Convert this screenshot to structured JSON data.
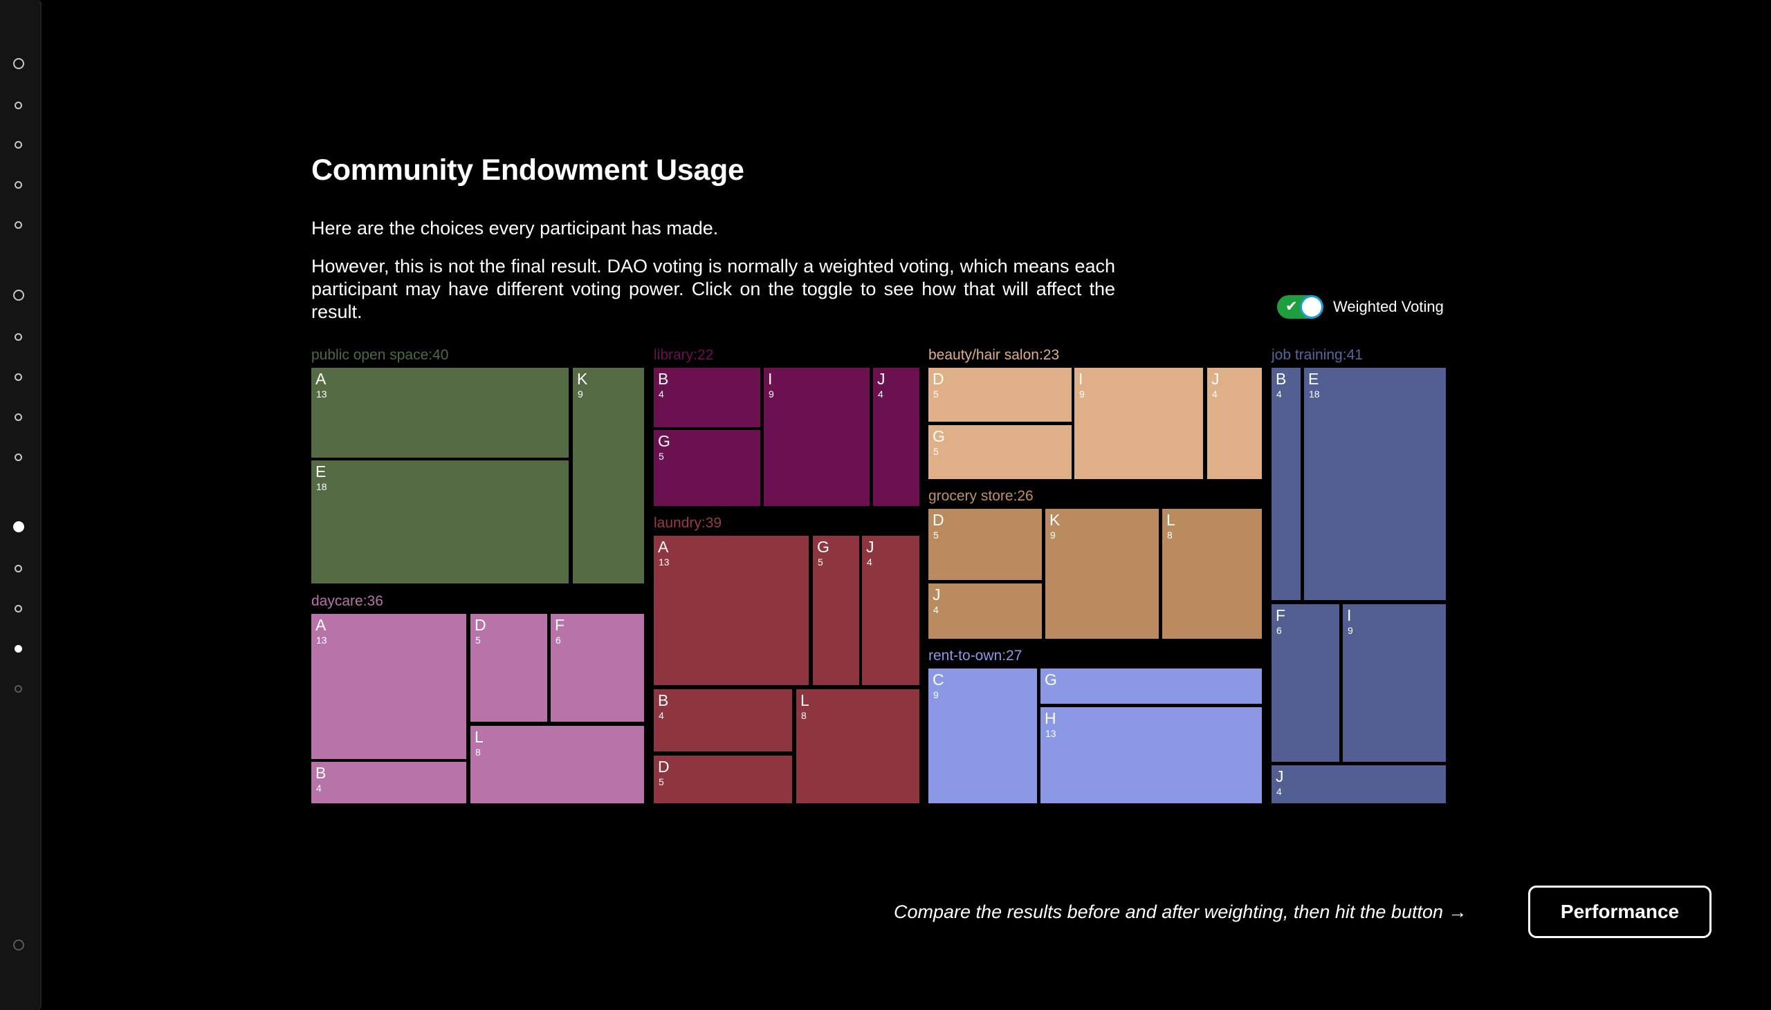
{
  "page": {
    "title": "Community Endowment Usage",
    "intro": "Here are the choices every participant has made.",
    "explanation": "However, this is not the final result. DAO voting is normally a weighted voting, which means each participant may have different voting power. Click on the toggle to see how that will affect the result."
  },
  "toggle": {
    "label": "Weighted Voting",
    "on": true
  },
  "footer": {
    "hint": "Compare the results before and after weighting, then hit the button →",
    "button_label": "Performance"
  },
  "sidebar": {
    "steps": [
      {
        "state": "outline"
      },
      {
        "state": "outline"
      },
      {
        "state": "outline"
      },
      {
        "state": "outline"
      },
      {
        "state": "outline"
      },
      {
        "state": "outline"
      },
      {
        "state": "outline"
      },
      {
        "state": "outline"
      },
      {
        "state": "outline"
      },
      {
        "state": "outline"
      },
      {
        "state": "filled"
      },
      {
        "state": "outline"
      },
      {
        "state": "outline"
      },
      {
        "state": "filled"
      },
      {
        "state": "dim"
      },
      {
        "state": "dim"
      }
    ]
  },
  "chart_data": {
    "type": "treemap",
    "groups": [
      {
        "name": "public open space",
        "total": "40",
        "color": "#556b43",
        "label_color": "#4f6a40",
        "cells": [
          {
            "letter": "A",
            "count": "13"
          },
          {
            "letter": "E",
            "count": "18"
          },
          {
            "letter": "K",
            "count": "9"
          }
        ]
      },
      {
        "name": "daycare",
        "total": "36",
        "color": "#b874a8",
        "label_color": "#b874a8",
        "cells": [
          {
            "letter": "A",
            "count": "13"
          },
          {
            "letter": "B",
            "count": "4"
          },
          {
            "letter": "D",
            "count": "5"
          },
          {
            "letter": "F",
            "count": "6"
          },
          {
            "letter": "L",
            "count": "8"
          }
        ]
      },
      {
        "name": "library",
        "total": "22",
        "color": "#6b1150",
        "label_color": "#6b1150",
        "cells": [
          {
            "letter": "B",
            "count": "4"
          },
          {
            "letter": "G",
            "count": "5"
          },
          {
            "letter": "I",
            "count": "9"
          },
          {
            "letter": "J",
            "count": "4"
          }
        ]
      },
      {
        "name": "laundry",
        "total": "39",
        "color": "#8f3540",
        "label_color": "#9a3a45",
        "cells": [
          {
            "letter": "A",
            "count": "13"
          },
          {
            "letter": "B",
            "count": "4"
          },
          {
            "letter": "D",
            "count": "5"
          },
          {
            "letter": "G",
            "count": "5"
          },
          {
            "letter": "J",
            "count": "4"
          },
          {
            "letter": "L",
            "count": "8"
          }
        ]
      },
      {
        "name": "beauty/hair salon",
        "total": "23",
        "color": "#dfb087",
        "label_color": "#dfb087",
        "cells": [
          {
            "letter": "D",
            "count": "5"
          },
          {
            "letter": "G",
            "count": "5"
          },
          {
            "letter": "I",
            "count": "9"
          },
          {
            "letter": "J",
            "count": "4"
          }
        ]
      },
      {
        "name": "grocery store",
        "total": "26",
        "color": "#b98b5e",
        "label_color": "#c19062",
        "cells": [
          {
            "letter": "D",
            "count": "5"
          },
          {
            "letter": "J",
            "count": "4"
          },
          {
            "letter": "K",
            "count": "9"
          },
          {
            "letter": "L",
            "count": "8"
          }
        ]
      },
      {
        "name": "rent-to-own",
        "total": "27",
        "color": "#8b98e6",
        "label_color": "#8b98e6",
        "cells": [
          {
            "letter": "C",
            "count": "9"
          },
          {
            "letter": "G",
            "count": ""
          },
          {
            "letter": "H",
            "count": "13"
          }
        ]
      },
      {
        "name": "job training",
        "total": "41",
        "color": "#535e93",
        "label_color": "#5a66a0",
        "cells": [
          {
            "letter": "B",
            "count": "4"
          },
          {
            "letter": "E",
            "count": "18"
          },
          {
            "letter": "F",
            "count": "6"
          },
          {
            "letter": "I",
            "count": "9"
          },
          {
            "letter": "J",
            "count": "4"
          }
        ]
      }
    ]
  }
}
